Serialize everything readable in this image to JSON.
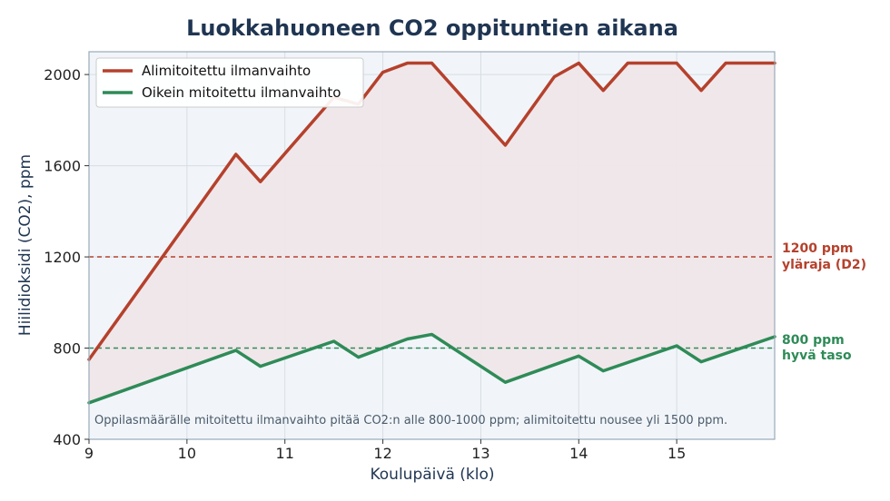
{
  "chart_data": {
    "type": "line",
    "title": "Luokkahuoneen CO2 oppituntien aikana",
    "xlabel": "Koulupäivä (klo)",
    "ylabel": "Hiilidioksidi (CO2), ppm",
    "xlim": [
      9,
      16
    ],
    "ylim": [
      400,
      2100
    ],
    "xticks": [
      9,
      10,
      11,
      12,
      13,
      14,
      15
    ],
    "yticks": [
      400,
      800,
      1200,
      1600,
      2000
    ],
    "grid": true,
    "legend_position": "top-left",
    "colors": {
      "under": "#b5412c",
      "proper": "#2e8b57",
      "under_fill": "#efe6e8",
      "plot_bg": "#f1f5f9",
      "frame": "#9aaab8",
      "grid": "#d6dde5"
    },
    "series": [
      {
        "name": "Alimitoitettu ilmanvaihto",
        "color": "#b5412c",
        "points": [
          [
            9,
            750
          ],
          [
            10.5,
            1650
          ],
          [
            10.75,
            1530
          ],
          [
            11.5,
            1900
          ],
          [
            11.75,
            1870
          ],
          [
            12,
            2010
          ],
          [
            12.25,
            2050
          ],
          [
            12.5,
            2050
          ],
          [
            13.25,
            1690
          ],
          [
            13.75,
            1990
          ],
          [
            14,
            2050
          ],
          [
            14.25,
            1930
          ],
          [
            14.5,
            2050
          ],
          [
            15,
            2050
          ],
          [
            15.25,
            1930
          ],
          [
            15.5,
            2050
          ],
          [
            16,
            2050
          ]
        ]
      },
      {
        "name": "Oikein mitoitettu ilmanvaihto",
        "color": "#2e8b57",
        "points": [
          [
            9,
            560
          ],
          [
            10.5,
            790
          ],
          [
            10.75,
            720
          ],
          [
            11.5,
            830
          ],
          [
            11.75,
            760
          ],
          [
            12,
            800
          ],
          [
            12.25,
            840
          ],
          [
            12.5,
            860
          ],
          [
            13.25,
            650
          ],
          [
            14,
            765
          ],
          [
            14.25,
            700
          ],
          [
            15,
            810
          ],
          [
            15.25,
            740
          ],
          [
            16,
            850
          ]
        ]
      }
    ],
    "reference_lines": [
      {
        "value": 1200,
        "color": "#b5412c",
        "label_line1": "1200 ppm",
        "label_line2": "yläraja (D2)"
      },
      {
        "value": 800,
        "color": "#2e8b57",
        "label_line1": "800 ppm",
        "label_line2": "hyvä taso"
      }
    ],
    "annotation": "Oppilasmäärälle mitoitettu ilmanvaihto pitää CO2:n alle 800-1000 ppm; alimitoitettu nousee yli 1500 ppm."
  }
}
